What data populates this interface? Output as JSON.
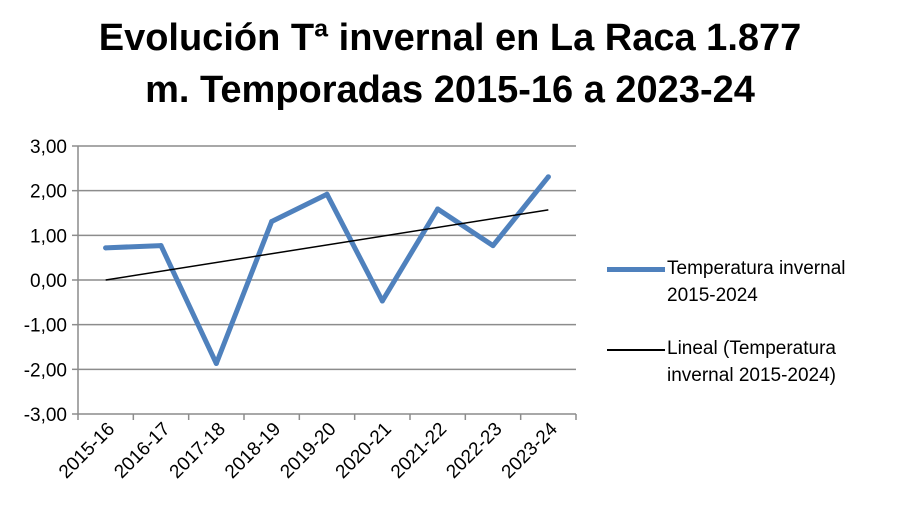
{
  "chart_data": {
    "type": "line",
    "title_line1": "Evolución Tª invernal en La Raca 1.877",
    "title_line2": "m. Temporadas 2015-16 a 2023-24",
    "categories": [
      "2015-16",
      "2016-17",
      "2017-18",
      "2018-19",
      "2019-20",
      "2020-21",
      "2021-22",
      "2022-23",
      "2023-24"
    ],
    "series": [
      {
        "name": "Temperatura invernal 2015-2024",
        "color": "#4f81bd",
        "values": [
          0.72,
          0.77,
          -1.87,
          1.31,
          1.92,
          -0.47,
          1.59,
          0.77,
          2.31
        ]
      }
    ],
    "trendline": {
      "name": "Lineal (Temperatura invernal 2015-2024)",
      "color": "#000000",
      "start": 0.0,
      "end": 1.57
    },
    "yticks": [
      "3,00",
      "2,00",
      "1,00",
      "0,00",
      "-1,00",
      "-2,00",
      "-3,00"
    ],
    "ylim": [
      -3,
      3
    ],
    "grid": true,
    "legend_position": "right"
  }
}
